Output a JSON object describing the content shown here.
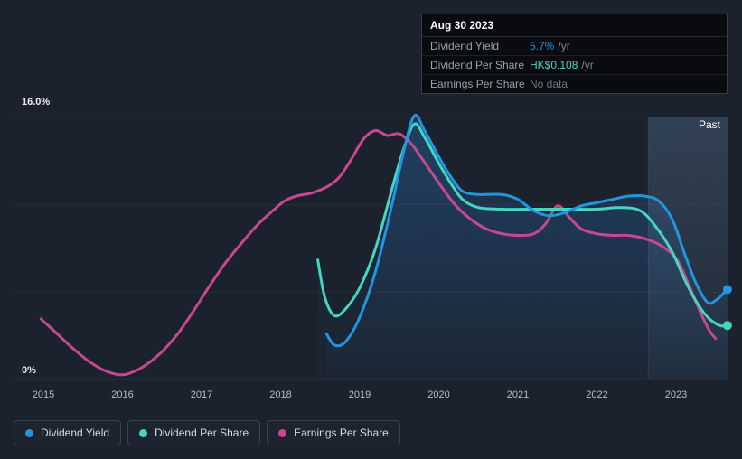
{
  "tooltip": {
    "date": "Aug 30 2023",
    "rows": [
      {
        "label": "Dividend Yield",
        "value": "5.7%",
        "suffix": "/yr",
        "value_color": "#2394df"
      },
      {
        "label": "Dividend Per Share",
        "value": "HK$0.108",
        "suffix": "/yr",
        "value_color": "#45d5c1"
      },
      {
        "label": "Earnings Per Share",
        "value": "No data",
        "suffix": "",
        "value_color": "#6e757f"
      }
    ]
  },
  "chart_data": {
    "type": "line",
    "title": "",
    "past_label": "Past",
    "ylim": [
      0,
      16
    ],
    "xlim": [
      2014.6,
      2023.65
    ],
    "y_ticks": [
      {
        "label": "16.0%",
        "value": 16
      },
      {
        "label": "0%",
        "value": 0
      }
    ],
    "x_ticks": [
      2015,
      2016,
      2017,
      2018,
      2019,
      2020,
      2021,
      2022,
      2023
    ],
    "past_region_start_year": 2022.65,
    "grid": "horizontal",
    "legend_position": "bottom-left",
    "background_color": "#1b222d",
    "series": [
      {
        "name": "Dividend Yield",
        "color": "#2394df",
        "area": true,
        "area_opacity": 1,
        "end_dot": true,
        "points": [
          [
            2018.58,
            2.8
          ],
          [
            2018.68,
            2.1
          ],
          [
            2018.82,
            2.3
          ],
          [
            2019.0,
            3.8
          ],
          [
            2019.2,
            6.6
          ],
          [
            2019.4,
            10.5
          ],
          [
            2019.55,
            13.8
          ],
          [
            2019.69,
            16.1
          ],
          [
            2019.82,
            15.2
          ],
          [
            2020.0,
            13.6
          ],
          [
            2020.15,
            12.4
          ],
          [
            2020.3,
            11.5
          ],
          [
            2020.5,
            11.3
          ],
          [
            2020.8,
            11.3
          ],
          [
            2021.0,
            11.0
          ],
          [
            2021.2,
            10.3
          ],
          [
            2021.4,
            10.0
          ],
          [
            2021.6,
            10.2
          ],
          [
            2021.8,
            10.6
          ],
          [
            2022.0,
            10.8
          ],
          [
            2022.2,
            11.0
          ],
          [
            2022.4,
            11.2
          ],
          [
            2022.6,
            11.2
          ],
          [
            2022.78,
            10.9
          ],
          [
            2022.95,
            9.8
          ],
          [
            2023.1,
            7.8
          ],
          [
            2023.25,
            5.9
          ],
          [
            2023.4,
            4.7
          ],
          [
            2023.52,
            4.9
          ],
          [
            2023.65,
            5.5
          ]
        ]
      },
      {
        "name": "Dividend Per Share",
        "color": "#45d5c1",
        "area": true,
        "area_opacity": 0.45,
        "end_dot": true,
        "points": [
          [
            2018.47,
            7.3
          ],
          [
            2018.56,
            5.0
          ],
          [
            2018.68,
            3.9
          ],
          [
            2018.82,
            4.3
          ],
          [
            2019.0,
            5.6
          ],
          [
            2019.2,
            8.0
          ],
          [
            2019.4,
            11.5
          ],
          [
            2019.55,
            14.0
          ],
          [
            2019.69,
            15.6
          ],
          [
            2019.82,
            14.8
          ],
          [
            2020.0,
            13.2
          ],
          [
            2020.15,
            12.0
          ],
          [
            2020.3,
            11.0
          ],
          [
            2020.5,
            10.5
          ],
          [
            2020.8,
            10.4
          ],
          [
            2021.1,
            10.4
          ],
          [
            2021.4,
            10.4
          ],
          [
            2021.7,
            10.4
          ],
          [
            2022.0,
            10.4
          ],
          [
            2022.3,
            10.5
          ],
          [
            2022.55,
            10.3
          ],
          [
            2022.75,
            9.3
          ],
          [
            2022.95,
            7.8
          ],
          [
            2023.1,
            6.2
          ],
          [
            2023.25,
            4.8
          ],
          [
            2023.4,
            3.8
          ],
          [
            2023.55,
            3.3
          ],
          [
            2023.65,
            3.3
          ]
        ]
      },
      {
        "name": "Earnings Per Share",
        "color": "#c8488f",
        "area": false,
        "area_opacity": 0,
        "end_dot": false,
        "points": [
          [
            2014.97,
            3.7
          ],
          [
            2015.15,
            2.9
          ],
          [
            2015.35,
            2.0
          ],
          [
            2015.55,
            1.2
          ],
          [
            2015.75,
            0.6
          ],
          [
            2015.95,
            0.3
          ],
          [
            2016.1,
            0.4
          ],
          [
            2016.3,
            0.9
          ],
          [
            2016.5,
            1.7
          ],
          [
            2016.7,
            2.8
          ],
          [
            2016.9,
            4.2
          ],
          [
            2017.1,
            5.7
          ],
          [
            2017.3,
            7.1
          ],
          [
            2017.5,
            8.3
          ],
          [
            2017.7,
            9.4
          ],
          [
            2017.9,
            10.3
          ],
          [
            2018.05,
            10.9
          ],
          [
            2018.2,
            11.2
          ],
          [
            2018.4,
            11.4
          ],
          [
            2018.6,
            11.8
          ],
          [
            2018.75,
            12.4
          ],
          [
            2018.9,
            13.5
          ],
          [
            2019.05,
            14.7
          ],
          [
            2019.2,
            15.2
          ],
          [
            2019.35,
            14.9
          ],
          [
            2019.5,
            15.0
          ],
          [
            2019.65,
            14.4
          ],
          [
            2019.8,
            13.4
          ],
          [
            2020.0,
            12.0
          ],
          [
            2020.2,
            10.7
          ],
          [
            2020.4,
            9.8
          ],
          [
            2020.6,
            9.2
          ],
          [
            2020.8,
            8.9
          ],
          [
            2021.0,
            8.8
          ],
          [
            2021.2,
            8.9
          ],
          [
            2021.35,
            9.5
          ],
          [
            2021.5,
            10.6
          ],
          [
            2021.65,
            9.9
          ],
          [
            2021.8,
            9.2
          ],
          [
            2022.0,
            8.9
          ],
          [
            2022.2,
            8.8
          ],
          [
            2022.4,
            8.8
          ],
          [
            2022.6,
            8.6
          ],
          [
            2022.8,
            8.2
          ],
          [
            2023.0,
            7.4
          ],
          [
            2023.15,
            5.9
          ],
          [
            2023.3,
            4.2
          ],
          [
            2023.42,
            3.0
          ],
          [
            2023.5,
            2.5
          ]
        ]
      }
    ]
  }
}
